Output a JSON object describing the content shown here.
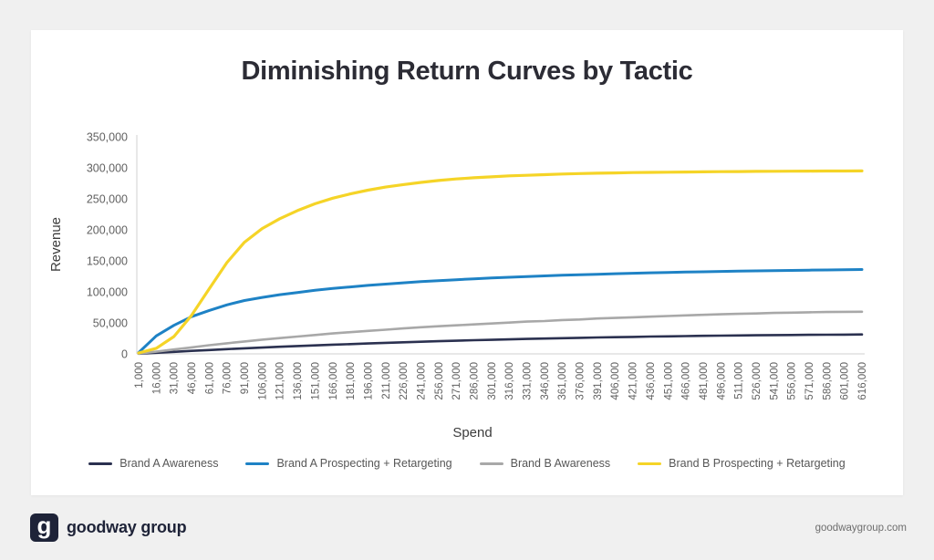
{
  "title": "Diminishing Return Curves by Tactic",
  "footer": {
    "logo_glyph": "g",
    "brand": "goodway group",
    "website": "goodwaygroup.com"
  },
  "colors": {
    "page_background": "#f0f0f0",
    "card_background": "#ffffff",
    "axis_line": "#d9d9d9",
    "tick_text": "#616161"
  },
  "chart_data": {
    "type": "line",
    "title": "Diminishing Return Curves by Tactic",
    "xlabel": "Spend",
    "ylabel": "Revenue",
    "ylim": [
      0,
      350000
    ],
    "y_ticks": [
      0,
      50000,
      100000,
      150000,
      200000,
      250000,
      300000,
      350000
    ],
    "grid": false,
    "legend_position": "bottom",
    "categories": [
      "1,000",
      "16,000",
      "31,000",
      "46,000",
      "61,000",
      "76,000",
      "91,000",
      "106,000",
      "121,000",
      "136,000",
      "151,000",
      "166,000",
      "181,000",
      "196,000",
      "211,000",
      "226,000",
      "241,000",
      "256,000",
      "271,000",
      "286,000",
      "301,000",
      "316,000",
      "331,000",
      "346,000",
      "361,000",
      "376,000",
      "391,000",
      "406,000",
      "421,000",
      "436,000",
      "451,000",
      "466,000",
      "481,000",
      "496,000",
      "511,000",
      "526,000",
      "541,000",
      "556,000",
      "571,000",
      "586,000",
      "601,000",
      "616,000"
    ],
    "series": [
      {
        "name": "Brand A Awareness",
        "color": "#2b3150",
        "stroke_width": 2.6,
        "values": [
          300,
          1800,
          3300,
          4800,
          6200,
          7600,
          8900,
          10200,
          11400,
          12600,
          13700,
          14800,
          15800,
          16800,
          17800,
          18700,
          19600,
          20400,
          21200,
          22000,
          22700,
          23400,
          24100,
          24700,
          25300,
          25900,
          26400,
          26900,
          27400,
          27900,
          28300,
          28700,
          29100,
          29400,
          29700,
          30000,
          30300,
          30500,
          30700,
          30900,
          31100,
          31300
        ]
      },
      {
        "name": "Brand A Prospecting + Retargeting",
        "color": "#1e82c5",
        "stroke_width": 3,
        "values": [
          2000,
          29000,
          46000,
          60000,
          70000,
          79000,
          86000,
          91000,
          95500,
          99000,
          102500,
          105500,
          108000,
          110500,
          112500,
          114500,
          116500,
          118000,
          119500,
          121000,
          122500,
          123500,
          124700,
          125700,
          126700,
          127600,
          128400,
          129200,
          130000,
          130700,
          131300,
          131900,
          132400,
          132900,
          133400,
          133800,
          134200,
          134600,
          135000,
          135300,
          135600,
          136000
        ]
      },
      {
        "name": "Brand B Awareness",
        "color": "#a8a8a8",
        "stroke_width": 2.6,
        "values": [
          500,
          3500,
          7000,
          10500,
          14000,
          17000,
          20000,
          23000,
          25500,
          28000,
          30500,
          33000,
          35000,
          37000,
          39000,
          41000,
          43000,
          44500,
          46000,
          47500,
          49000,
          50500,
          52000,
          53000,
          54500,
          55500,
          57000,
          58000,
          59000,
          60000,
          61000,
          62000,
          63000,
          63800,
          64500,
          65200,
          66000,
          66500,
          67000,
          67500,
          67800,
          68000
        ]
      },
      {
        "name": "Brand B Prospecting + Retargeting",
        "color": "#f5d427",
        "stroke_width": 3.2,
        "values": [
          1500,
          9000,
          28000,
          62000,
          105000,
          147000,
          180000,
          202000,
          218000,
          231000,
          242000,
          251000,
          258000,
          264000,
          269000,
          273000,
          276500,
          279500,
          282000,
          284000,
          285500,
          287000,
          288000,
          289000,
          290000,
          290700,
          291300,
          291800,
          292300,
          292700,
          293000,
          293300,
          293600,
          293800,
          294000,
          294200,
          294400,
          294500,
          294700,
          294800,
          294900,
          295000
        ]
      }
    ]
  }
}
